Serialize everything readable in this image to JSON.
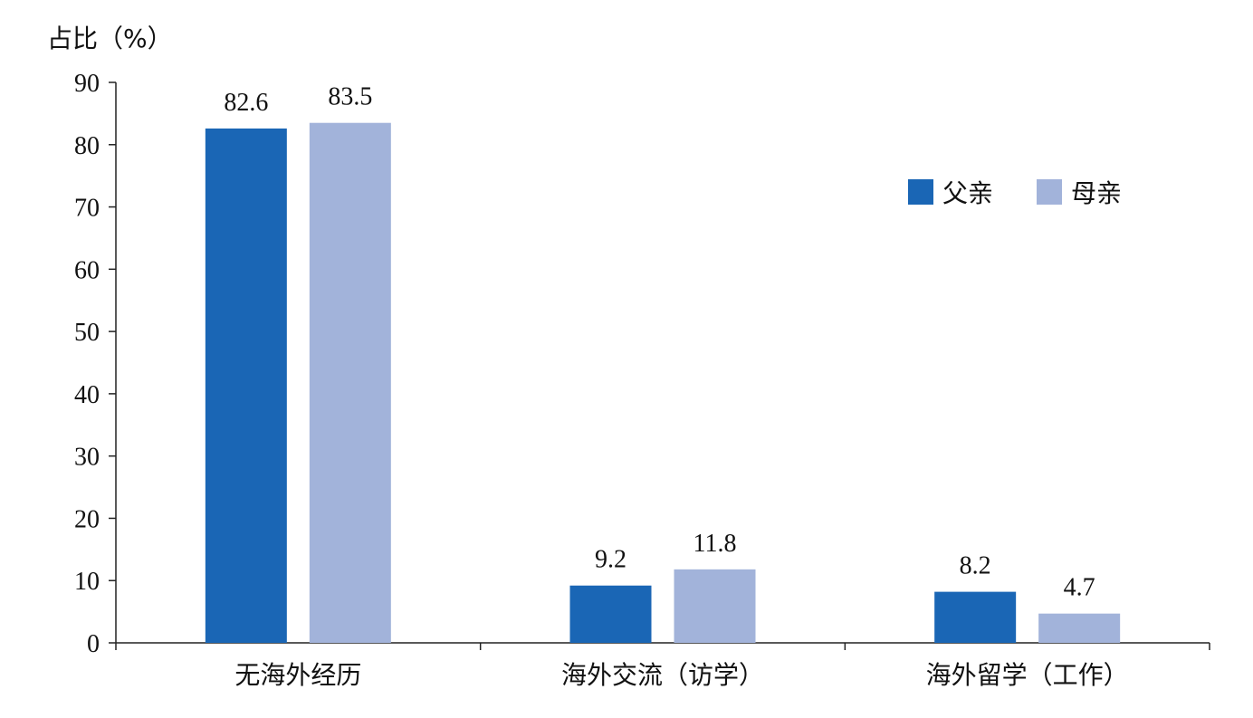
{
  "chart_data": {
    "type": "bar",
    "ylabel": "占比（%）",
    "ylim": [
      0,
      90
    ],
    "yticks": [
      "0",
      "10",
      "20",
      "30",
      "40",
      "50",
      "60",
      "70",
      "80",
      "90"
    ],
    "categories": [
      "无海外经历",
      "海外交流（访学）",
      "海外留学（工作）"
    ],
    "series": [
      {
        "name": "父亲",
        "color": "#1a66b5",
        "values": [
          82.6,
          9.2,
          8.2
        ],
        "labels": [
          "82.6",
          "9.2",
          "8.2"
        ]
      },
      {
        "name": "母亲",
        "color": "#a2b3da",
        "values": [
          83.5,
          11.8,
          4.7
        ],
        "labels": [
          "83.5",
          "11.8",
          "4.7"
        ]
      }
    ],
    "legend_position": "top-right",
    "grid": false
  }
}
